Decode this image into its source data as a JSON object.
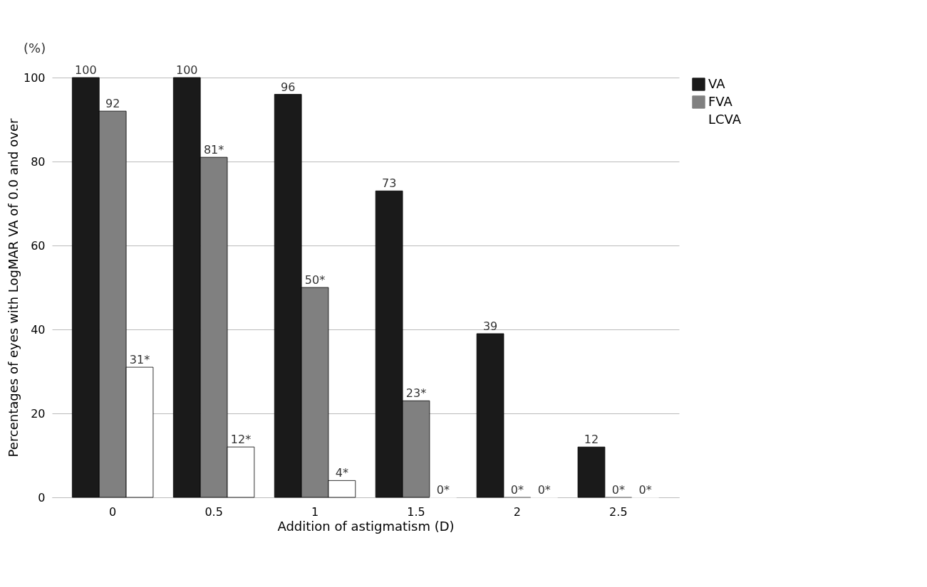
{
  "chart_data": {
    "type": "bar",
    "xlabel": "Addition of astigmatism (D)",
    "ylabel": "Percentages of eyes with LogMAR VA of 0.0 and over",
    "categories": [
      "0",
      "0.5",
      "1",
      "1.5",
      "2",
      "2.5"
    ],
    "series": [
      {
        "name": "VA",
        "color": "#1a1a1a",
        "values": [
          100,
          100,
          96,
          73,
          39,
          12
        ],
        "value_labels": [
          "100",
          "100",
          "96",
          "73",
          "39",
          "12"
        ]
      },
      {
        "name": "FVA",
        "color": "#808080",
        "values": [
          92,
          81,
          50,
          23,
          0,
          0
        ],
        "value_labels": [
          "92",
          "81*",
          "50*",
          "23*",
          "0*",
          "0*"
        ]
      },
      {
        "name": "LCVA",
        "color": "#ffffff",
        "values": [
          31,
          12,
          4,
          0,
          0,
          0
        ],
        "value_labels": [
          "31*",
          "12*",
          "4*",
          "0*",
          "0*",
          "0*"
        ]
      }
    ],
    "ylim": [
      0,
      100
    ],
    "yticks": [
      0,
      20,
      40,
      60,
      80,
      100
    ],
    "grid": "y",
    "legend": "right",
    "annotations": [
      "(%)"
    ]
  }
}
